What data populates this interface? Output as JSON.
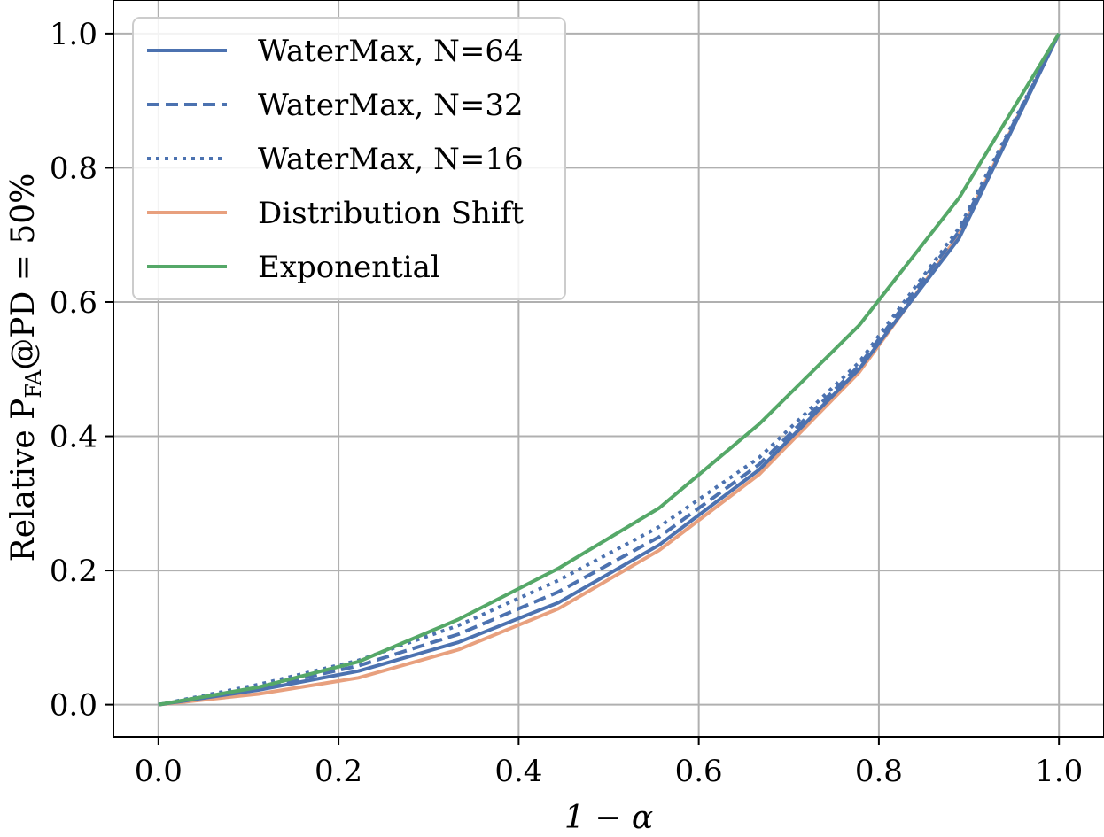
{
  "chart_data": {
    "type": "line",
    "title": "",
    "xlabel": "1 − α",
    "ylabel": "Relative P_FA@PD = 50%",
    "ylabel_parts": {
      "main": "Relative P",
      "sub": "FA",
      "rest": "@PD = 50%"
    },
    "xlim": [
      -0.05,
      1.05
    ],
    "ylim": [
      -0.048,
      1.05
    ],
    "xticks": [
      0.0,
      0.2,
      0.4,
      0.6,
      0.8,
      1.0
    ],
    "yticks": [
      0.0,
      0.2,
      0.4,
      0.6,
      0.8,
      1.0
    ],
    "xtick_labels": [
      "0.0",
      "0.2",
      "0.4",
      "0.6",
      "0.8",
      "1.0"
    ],
    "ytick_labels": [
      "0.0",
      "0.2",
      "0.4",
      "0.6",
      "0.8",
      "1.0"
    ],
    "grid": true,
    "legend_position": "top-left",
    "x": [
      0.0,
      0.111,
      0.222,
      0.333,
      0.444,
      0.556,
      0.667,
      0.778,
      0.889,
      1.0
    ],
    "series": [
      {
        "name": "WaterMax, N=64",
        "color": "#4c72b0",
        "dash": "solid",
        "values": [
          0.0,
          0.022,
          0.05,
          0.093,
          0.152,
          0.238,
          0.35,
          0.5,
          0.695,
          1.0
        ]
      },
      {
        "name": "WaterMax, N=32",
        "color": "#4c72b0",
        "dash": "dashed",
        "values": [
          0.0,
          0.025,
          0.058,
          0.105,
          0.168,
          0.25,
          0.358,
          0.505,
          0.705,
          1.0
        ]
      },
      {
        "name": "WaterMax, N=16",
        "color": "#4c72b0",
        "dash": "dotted",
        "values": [
          0.0,
          0.03,
          0.066,
          0.118,
          0.185,
          0.265,
          0.368,
          0.51,
          0.71,
          1.0
        ]
      },
      {
        "name": "Distribution Shift",
        "color": "#e8a07e",
        "dash": "solid",
        "values": [
          0.0,
          0.016,
          0.04,
          0.082,
          0.143,
          0.23,
          0.343,
          0.495,
          0.7,
          1.0
        ]
      },
      {
        "name": "Exponential",
        "color": "#55a868",
        "dash": "solid",
        "values": [
          0.0,
          0.026,
          0.064,
          0.127,
          0.203,
          0.293,
          0.418,
          0.565,
          0.755,
          1.0
        ]
      }
    ]
  }
}
